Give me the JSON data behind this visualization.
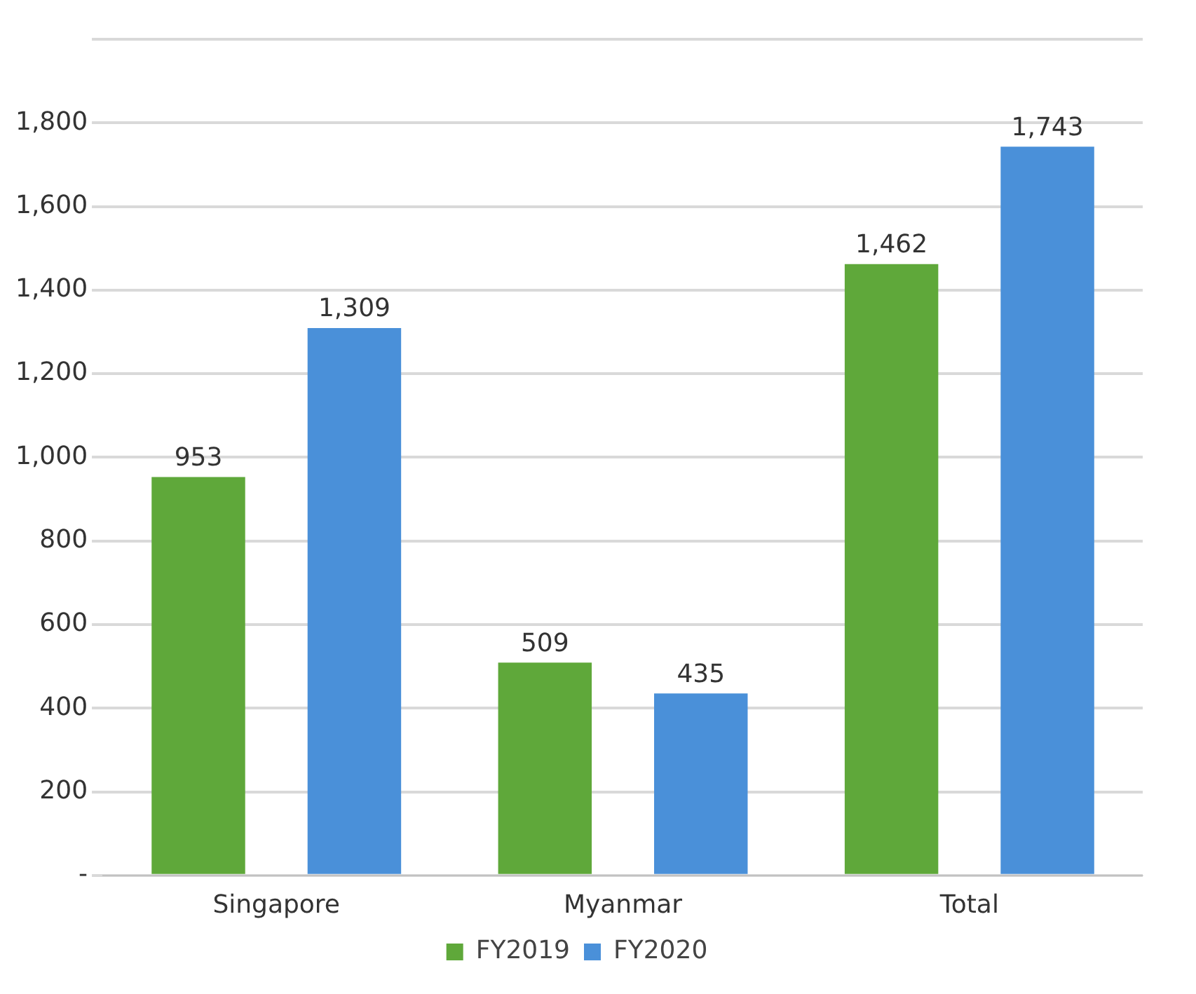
{
  "chart_data": {
    "type": "bar",
    "categories": [
      "Singapore",
      "Myanmar",
      "Total"
    ],
    "series": [
      {
        "name": "FY2019",
        "color": "#5fa83a",
        "values": [
          953,
          509,
          1462
        ],
        "value_labels": [
          "953",
          "509",
          "1,462"
        ]
      },
      {
        "name": "FY2020",
        "color": "#4a90d9",
        "values": [
          1309,
          435,
          1743
        ],
        "value_labels": [
          "1,309",
          "435",
          "1,743"
        ]
      }
    ],
    "ylim": [
      0,
      2000
    ],
    "yticks": [
      {
        "value": 0,
        "label": "-"
      },
      200,
      400,
      600,
      800,
      {
        "value": 1000,
        "label": "1,000"
      },
      {
        "value": 1200,
        "label": "1,200"
      },
      {
        "value": 1400,
        "label": "1,400"
      },
      {
        "value": 1600,
        "label": "1,600"
      },
      {
        "value": 1800,
        "label": "1,800"
      },
      {
        "value": 2000,
        "label": null
      }
    ],
    "grid": "y",
    "legend": "bottom"
  }
}
